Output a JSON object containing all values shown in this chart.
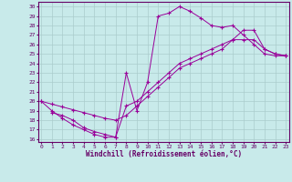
{
  "xlabel": "Windchill (Refroidissement éolien,°C)",
  "background_color": "#c8eaea",
  "grid_color": "#aacccc",
  "line_color": "#990099",
  "spine_color": "#660066",
  "tick_color": "#660066",
  "xlim": [
    -0.3,
    23.3
  ],
  "ylim": [
    15.7,
    30.5
  ],
  "xticks": [
    0,
    1,
    2,
    3,
    4,
    5,
    6,
    7,
    8,
    9,
    10,
    11,
    12,
    13,
    14,
    15,
    16,
    17,
    18,
    19,
    20,
    21,
    22,
    23
  ],
  "yticks": [
    16,
    17,
    18,
    19,
    20,
    21,
    22,
    23,
    24,
    25,
    26,
    27,
    28,
    29,
    30
  ],
  "line1_x": [
    0,
    1,
    2,
    3,
    4,
    5,
    6,
    7,
    8,
    9,
    10,
    11,
    12,
    13,
    14,
    15,
    16,
    17,
    18,
    19,
    20,
    21,
    22,
    23
  ],
  "line1_y": [
    20,
    19,
    18.2,
    17.5,
    17,
    16.5,
    16.2,
    16.2,
    23,
    19,
    22,
    29,
    29.3,
    30,
    29.5,
    28.8,
    28,
    27.8,
    28,
    27,
    26,
    25,
    24.8,
    24.8
  ],
  "line2_x": [
    0,
    1,
    2,
    3,
    4,
    5,
    6,
    7,
    8,
    9,
    10,
    11,
    12,
    13,
    14,
    15,
    16,
    17,
    18,
    19,
    20,
    21,
    22,
    23
  ],
  "line2_y": [
    20,
    19.7,
    19.4,
    19.1,
    18.8,
    18.5,
    18.2,
    18.0,
    18.5,
    19.5,
    20.5,
    21.5,
    22.5,
    23.5,
    24.0,
    24.5,
    25.0,
    25.5,
    26.5,
    27.5,
    27.5,
    25.5,
    25.0,
    24.8
  ],
  "line3_x": [
    1,
    2,
    3,
    4,
    5,
    6,
    7,
    8,
    9,
    10,
    11,
    12,
    13,
    14,
    15,
    16,
    17,
    18,
    19,
    20,
    21,
    22,
    23
  ],
  "line3_y": [
    18.8,
    18.5,
    18.0,
    17.2,
    16.8,
    16.5,
    16.2,
    19.5,
    20.0,
    21.0,
    22.0,
    23.0,
    24.0,
    24.5,
    25.0,
    25.5,
    26.0,
    26.5,
    26.5,
    26.5,
    25.5,
    25.0,
    24.8
  ]
}
